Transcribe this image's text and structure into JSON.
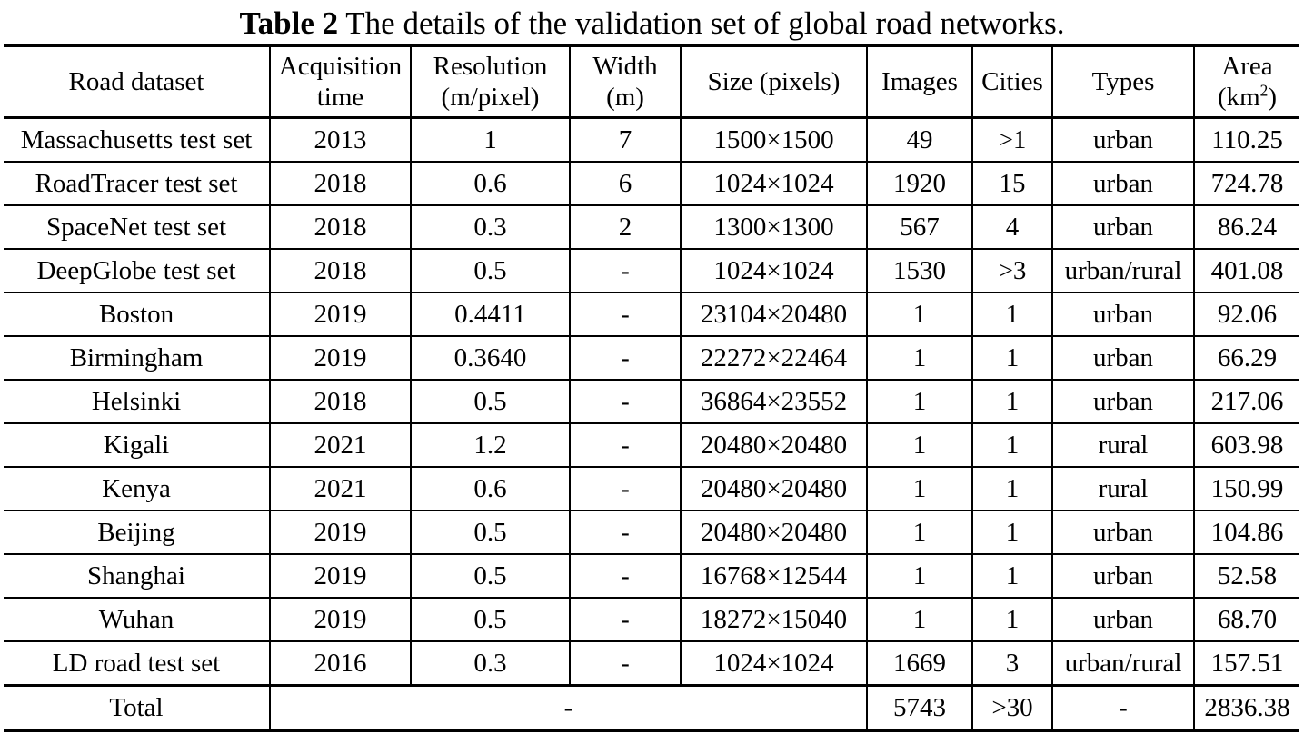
{
  "caption": {
    "label": "Table 2",
    "text": " The details of the validation set of global road networks."
  },
  "headers": [
    {
      "line1": "Road dataset",
      "line2": ""
    },
    {
      "line1": "Acquisition",
      "line2": "time"
    },
    {
      "line1": "Resolution",
      "line2": "(m/pixel)"
    },
    {
      "line1": "Width",
      "line2": "(m)"
    },
    {
      "line1": "Size (pixels)",
      "line2": ""
    },
    {
      "line1": "Images",
      "line2": ""
    },
    {
      "line1": "Cities",
      "line2": ""
    },
    {
      "line1": "Types",
      "line2": ""
    },
    {
      "line1": "Area",
      "line2": "(km",
      "sup": "2",
      "tail": ")"
    }
  ],
  "rows": [
    [
      "Massachusetts test set",
      "2013",
      "1",
      "7",
      "1500×1500",
      "49",
      ">1",
      "urban",
      "110.25"
    ],
    [
      "RoadTracer test set",
      "2018",
      "0.6",
      "6",
      "1024×1024",
      "1920",
      "15",
      "urban",
      "724.78"
    ],
    [
      "SpaceNet test set",
      "2018",
      "0.3",
      "2",
      "1300×1300",
      "567",
      "4",
      "urban",
      "86.24"
    ],
    [
      "DeepGlobe test set",
      "2018",
      "0.5",
      "-",
      "1024×1024",
      "1530",
      ">3",
      "urban/rural",
      "401.08"
    ],
    [
      "Boston",
      "2019",
      "0.4411",
      "-",
      "23104×20480",
      "1",
      "1",
      "urban",
      "92.06"
    ],
    [
      "Birmingham",
      "2019",
      "0.3640",
      "-",
      "22272×22464",
      "1",
      "1",
      "urban",
      "66.29"
    ],
    [
      "Helsinki",
      "2018",
      "0.5",
      "-",
      "36864×23552",
      "1",
      "1",
      "urban",
      "217.06"
    ],
    [
      "Kigali",
      "2021",
      "1.2",
      "-",
      "20480×20480",
      "1",
      "1",
      "rural",
      "603.98"
    ],
    [
      "Kenya",
      "2021",
      "0.6",
      "-",
      "20480×20480",
      "1",
      "1",
      "rural",
      "150.99"
    ],
    [
      "Beijing",
      "2019",
      "0.5",
      "-",
      "20480×20480",
      "1",
      "1",
      "urban",
      "104.86"
    ],
    [
      "Shanghai",
      "2019",
      "0.5",
      "-",
      "16768×12544",
      "1",
      "1",
      "urban",
      "52.58"
    ],
    [
      "Wuhan",
      "2019",
      "0.5",
      "-",
      "18272×15040",
      "1",
      "1",
      "urban",
      "68.70"
    ],
    [
      "LD road test set",
      "2016",
      "0.3",
      "-",
      "1024×1024",
      "1669",
      "3",
      "urban/rural",
      "157.51"
    ]
  ],
  "total": {
    "label": "Total",
    "merged": "-",
    "images": "5743",
    "cities": ">30",
    "types": "-",
    "area": "2836.38"
  }
}
